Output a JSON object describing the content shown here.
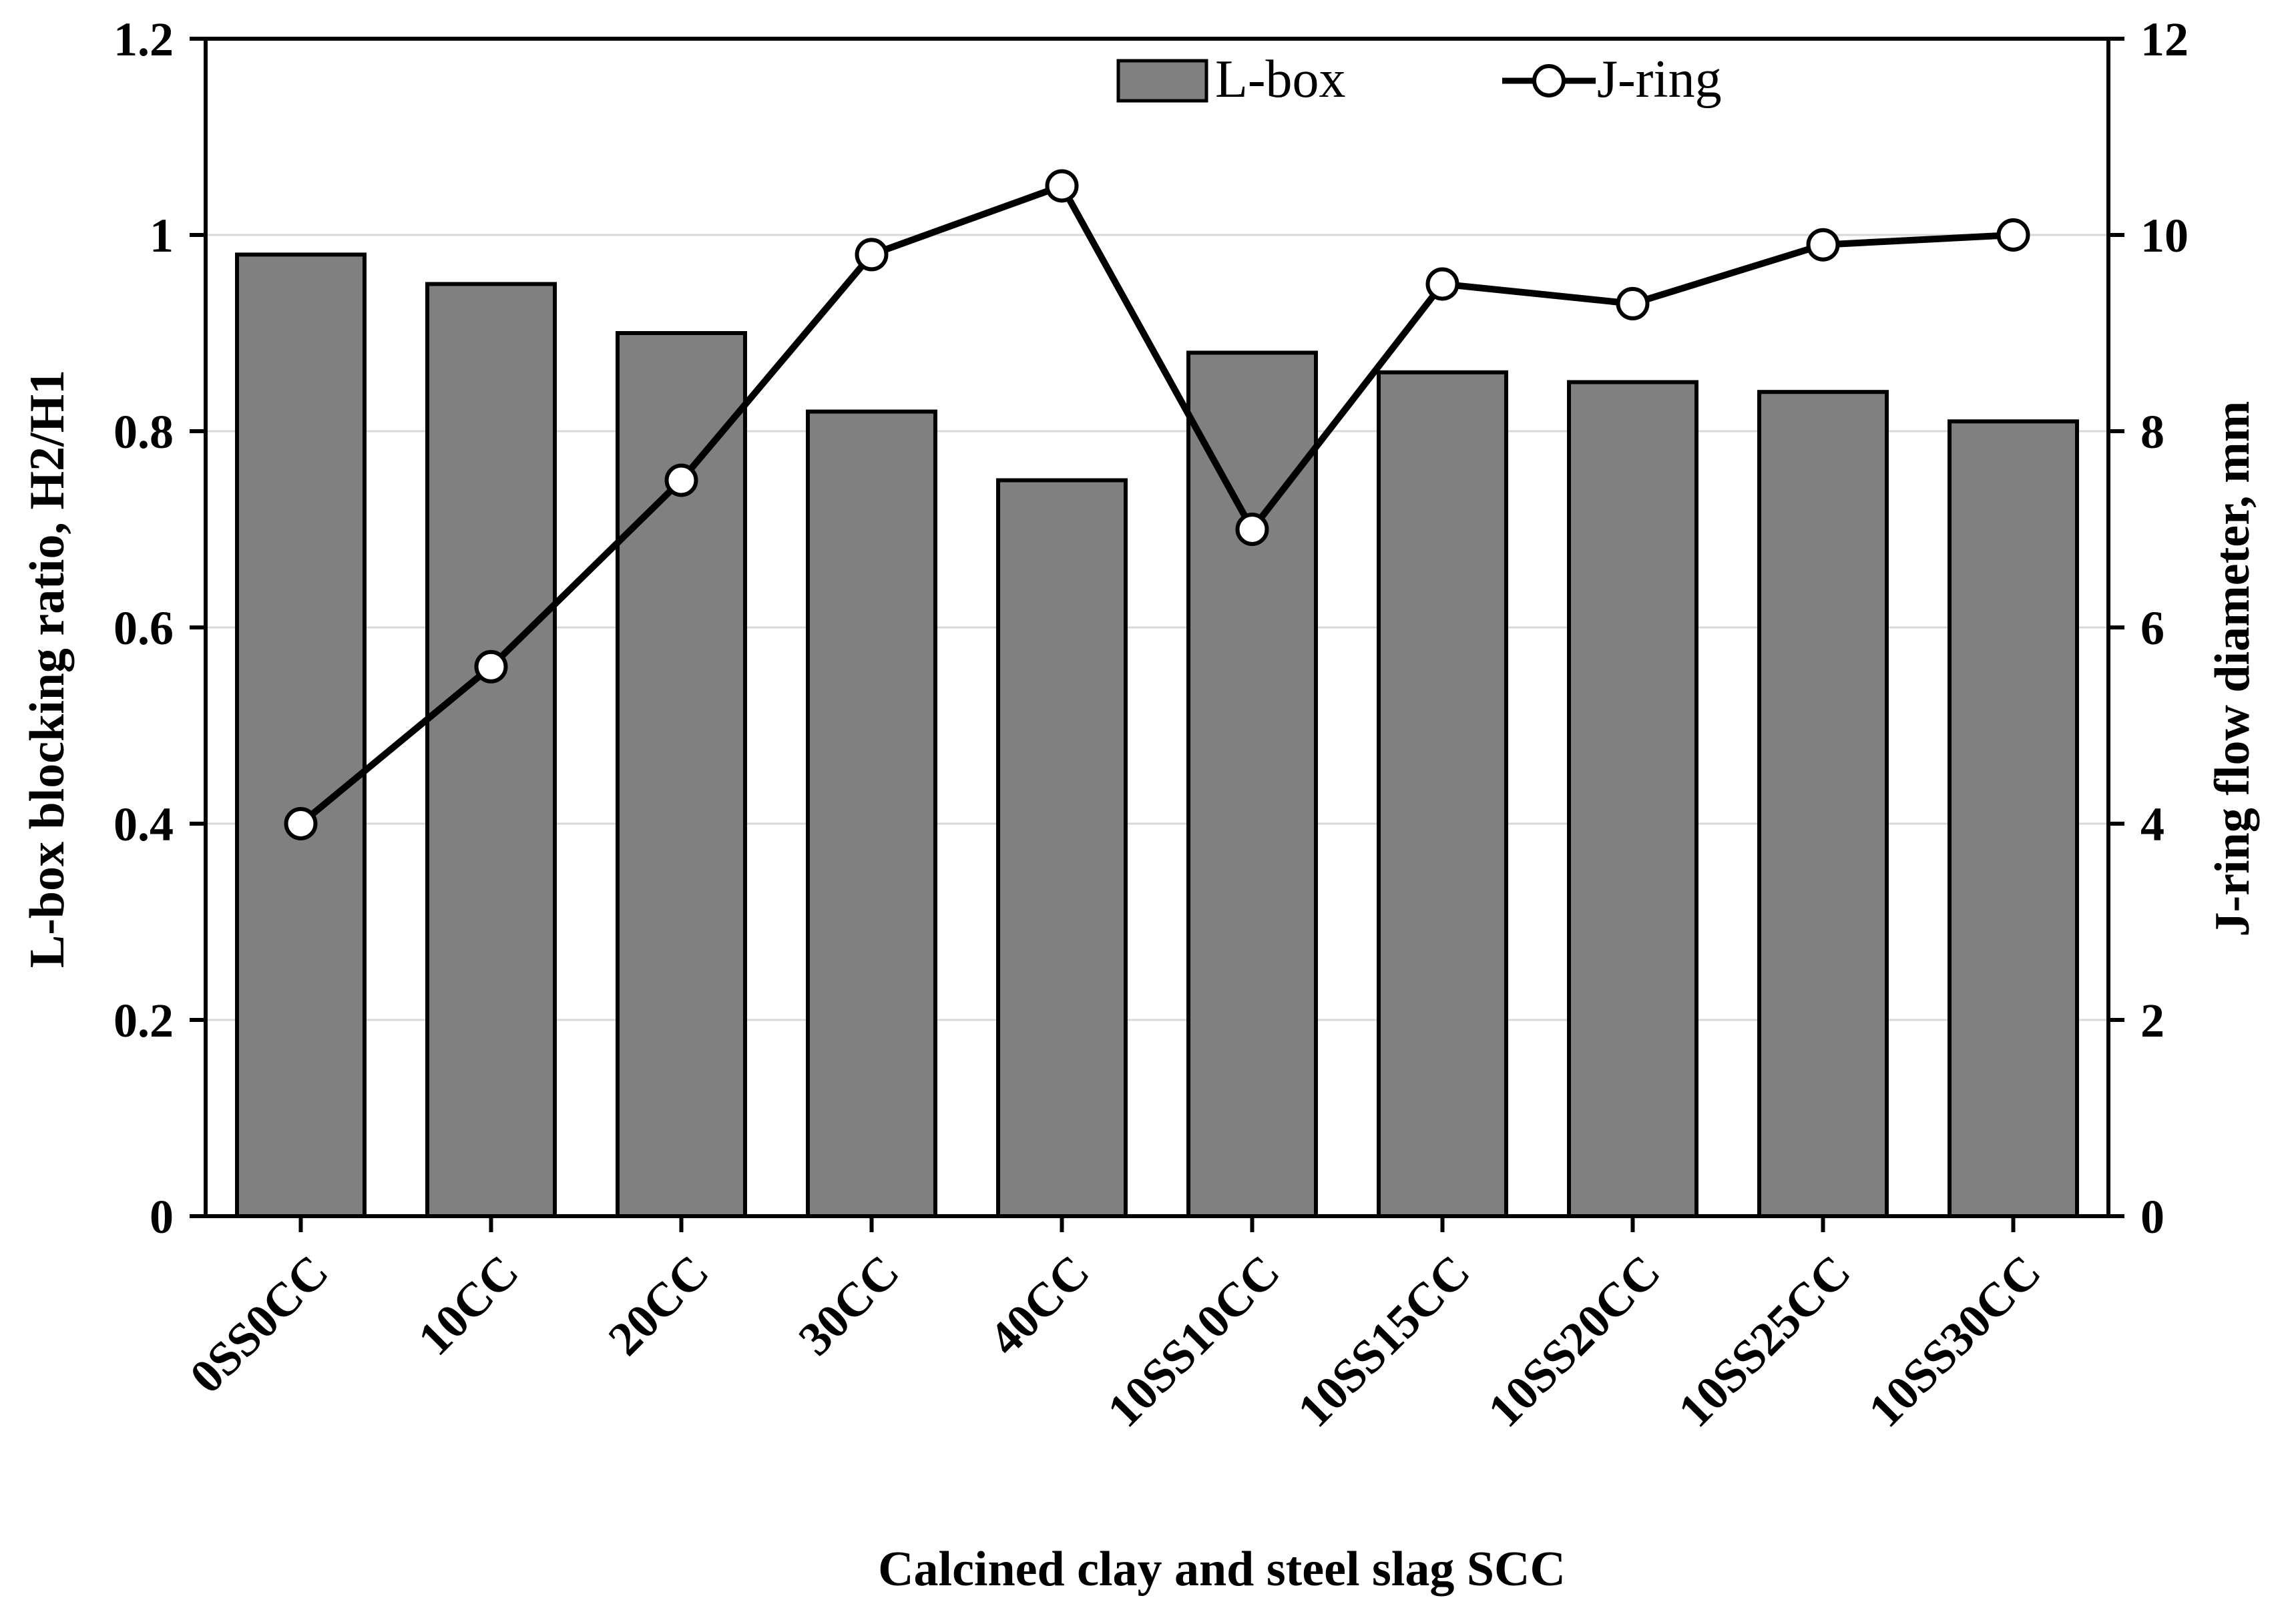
{
  "chart_data": {
    "type": "bar",
    "title": "",
    "xlabel": "Calcined clay and steel slag SCC",
    "ylabel": "L-box blocking ratio, H2/H1",
    "y2label": "J-ring flow diameter, mm",
    "ylim": [
      0,
      1.2
    ],
    "y2lim": [
      0,
      12
    ],
    "yticks": [
      "0",
      "0.2",
      "0.4",
      "0.6",
      "0.8",
      "1",
      "1.2"
    ],
    "y2ticks": [
      "0",
      "2",
      "4",
      "6",
      "8",
      "10",
      "12"
    ],
    "grid": true,
    "legend_position": "top-center",
    "categories": [
      "0SS0CC",
      "10CC",
      "20CC",
      "30CC",
      "40CC",
      "10SS10CC",
      "10SS15CC",
      "10SS20CC",
      "10SS25CC",
      "10SS30CC"
    ],
    "series": [
      {
        "name": "L-box",
        "type": "bar",
        "axis": "left",
        "color": "#808080",
        "values": [
          0.98,
          0.95,
          0.9,
          0.82,
          0.75,
          0.88,
          0.86,
          0.85,
          0.84,
          0.81
        ]
      },
      {
        "name": "J-ring",
        "type": "line",
        "axis": "right",
        "color": "#000000",
        "values": [
          4.0,
          5.6,
          7.5,
          9.8,
          10.5,
          7.0,
          9.5,
          9.3,
          9.9,
          10.0
        ]
      }
    ]
  }
}
